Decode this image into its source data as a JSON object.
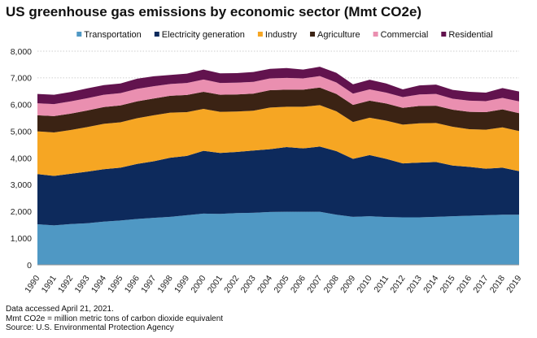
{
  "title": "US greenhouse gas emissions by economic sector (Mmt CO2e)",
  "notes": [
    "Data accessed April 21, 2021.",
    "Mmt CO2e = million metric tons of carbon dioxide equivalent",
    "Source: U.S. Environmental Protection Agency"
  ],
  "chart_data": {
    "type": "area",
    "stacked": true,
    "title": "US greenhouse gas emissions by economic sector (Mmt CO2e)",
    "xlabel": "",
    "ylabel": "",
    "ylim": [
      0,
      8000
    ],
    "yticks": [
      0,
      1000,
      2000,
      3000,
      4000,
      5000,
      6000,
      7000,
      8000
    ],
    "grid": true,
    "legend_position": "top",
    "x": [
      "1990",
      "1991",
      "1992",
      "1993",
      "1994",
      "1995",
      "1996",
      "1997",
      "1998",
      "1999",
      "2000",
      "2001",
      "2002",
      "2003",
      "2004",
      "2005",
      "2006",
      "2007",
      "2008",
      "2009",
      "2010",
      "2011",
      "2012",
      "2013",
      "2014",
      "2015",
      "2016",
      "2017",
      "2018",
      "2019"
    ],
    "series": [
      {
        "name": "Transportation",
        "color": "#4f98c4",
        "values": [
          1520,
          1480,
          1530,
          1560,
          1620,
          1660,
          1720,
          1760,
          1800,
          1860,
          1920,
          1910,
          1940,
          1950,
          1980,
          1990,
          1990,
          1990,
          1880,
          1800,
          1820,
          1790,
          1780,
          1780,
          1800,
          1820,
          1840,
          1860,
          1880,
          1880
        ]
      },
      {
        "name": "Electricity generation",
        "color": "#0d2a5c",
        "values": [
          1880,
          1850,
          1880,
          1930,
          1960,
          1980,
          2060,
          2120,
          2210,
          2220,
          2350,
          2280,
          2290,
          2330,
          2350,
          2420,
          2370,
          2440,
          2380,
          2170,
          2290,
          2180,
          2020,
          2050,
          2050,
          1900,
          1830,
          1740,
          1760,
          1630
        ]
      },
      {
        "name": "Industry",
        "color": "#f6a623",
        "values": [
          1600,
          1630,
          1640,
          1670,
          1700,
          1700,
          1710,
          1720,
          1690,
          1640,
          1570,
          1540,
          1510,
          1490,
          1560,
          1510,
          1560,
          1550,
          1490,
          1380,
          1400,
          1430,
          1450,
          1470,
          1460,
          1450,
          1410,
          1460,
          1510,
          1500
        ]
      },
      {
        "name": "Agriculture",
        "color": "#3b2314",
        "values": [
          600,
          610,
          610,
          620,
          630,
          630,
          630,
          630,
          630,
          640,
          640,
          640,
          640,
          640,
          650,
          640,
          640,
          660,
          650,
          640,
          640,
          640,
          630,
          650,
          650,
          640,
          650,
          660,
          670,
          670
        ]
      },
      {
        "name": "Commercial",
        "color": "#ea8fb0",
        "values": [
          450,
          450,
          460,
          460,
          460,
          460,
          470,
          460,
          440,
          450,
          460,
          440,
          440,
          440,
          440,
          440,
          420,
          430,
          430,
          420,
          420,
          410,
          400,
          430,
          440,
          410,
          420,
          410,
          430,
          440
        ]
      },
      {
        "name": "Residential",
        "color": "#62134e",
        "values": [
          350,
          350,
          350,
          370,
          360,
          360,
          380,
          370,
          340,
          350,
          370,
          360,
          360,
          370,
          360,
          370,
          330,
          350,
          360,
          350,
          360,
          340,
          290,
          340,
          350,
          330,
          330,
          320,
          370,
          370
        ]
      }
    ]
  }
}
